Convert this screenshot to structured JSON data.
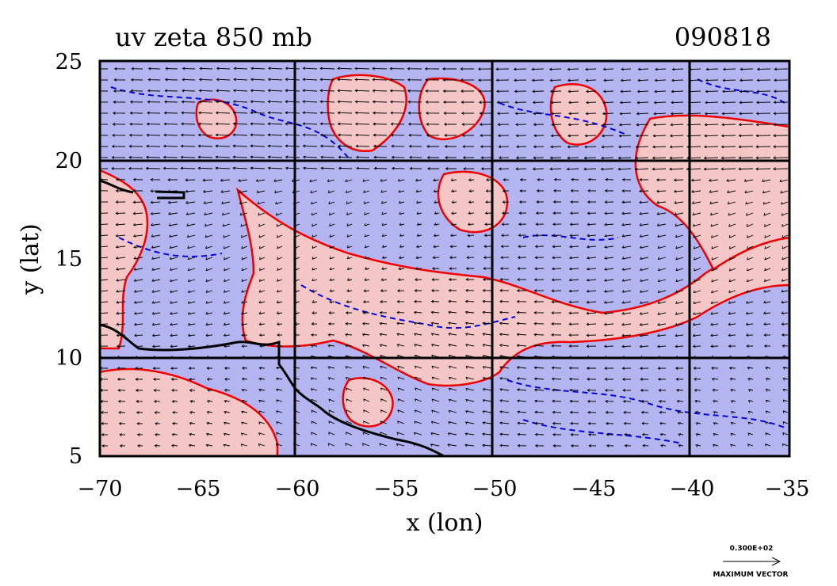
{
  "plot": {
    "title": "uv zeta 850 mb",
    "date": "090818",
    "xlabel": "x (lon)",
    "ylabel": "y (lat)",
    "x_ticks": [
      "−70",
      "−65",
      "−60",
      "−55",
      "−50",
      "−45",
      "−40",
      "−35"
    ],
    "y_ticks": [
      "25",
      "20",
      "15",
      "10",
      "5"
    ],
    "grid_lon": [
      -60,
      -50,
      -40
    ],
    "grid_lat": [
      20,
      10
    ],
    "xlim": [
      -70,
      -35
    ],
    "ylim": [
      5,
      25
    ]
  },
  "legend": {
    "value": "0.300E+02",
    "label": "MAXIMUM VECTOR"
  },
  "colors": {
    "negative_fill": "#b4b4f0",
    "positive_fill": "#f5c6c6",
    "negative_contour": "#0000e0",
    "positive_contour": "#ee0000",
    "coastline": "#000000"
  },
  "chart_data": {
    "type": "contour-vector map",
    "title": "uv zeta 850 mb",
    "xlabel": "x (lon)",
    "ylabel": "y (lat)",
    "xlim": [
      -70,
      -35
    ],
    "ylim": [
      5,
      25
    ],
    "x_ticks": [
      -70,
      -65,
      -60,
      -55,
      -50,
      -45,
      -40,
      -35
    ],
    "y_ticks": [
      5,
      10,
      15,
      20,
      25
    ],
    "grid": true,
    "variables": [
      "u/v wind vectors",
      "relative vorticity (zeta)"
    ],
    "level": "850 mb",
    "date": "090818"
  }
}
